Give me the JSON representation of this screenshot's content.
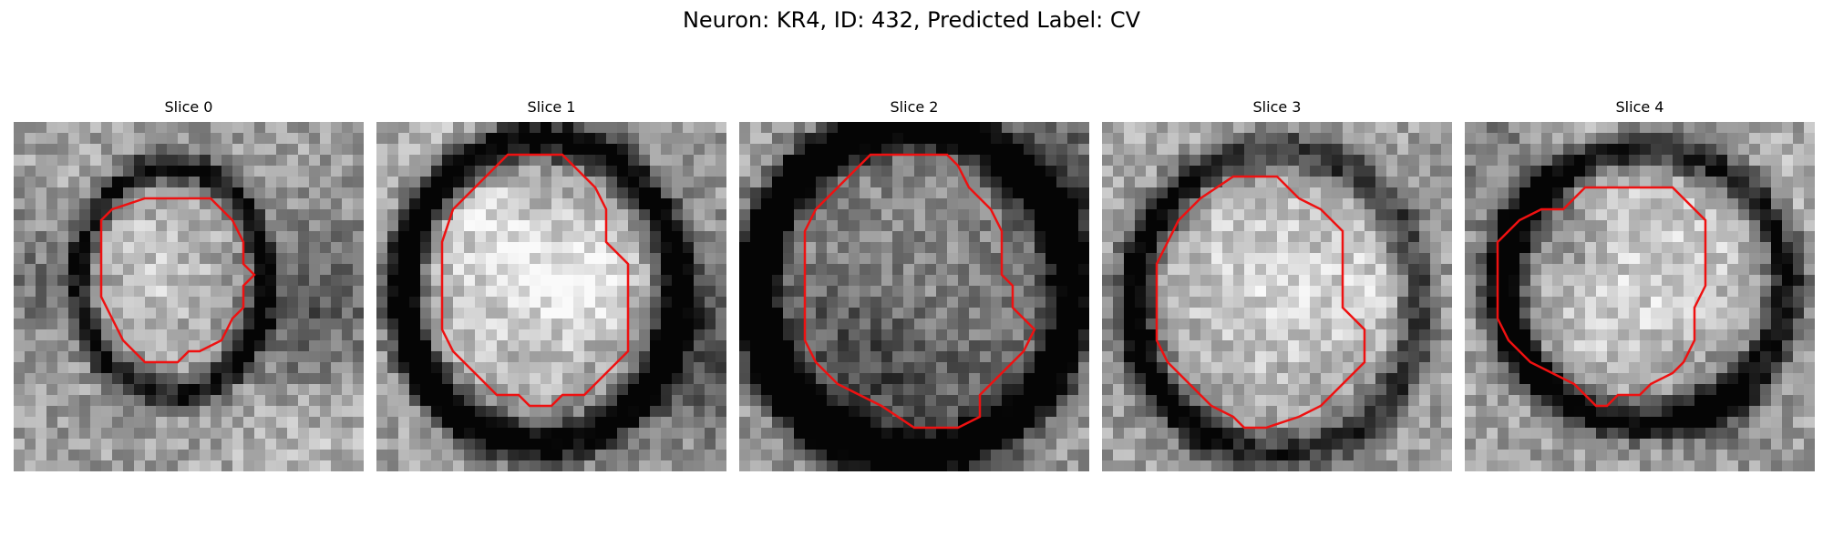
{
  "figure": {
    "title": "Neuron: KR4, ID: 432, Predicted Label: CV"
  },
  "slices": [
    {
      "title": "Slice 0"
    },
    {
      "title": "Slice 1"
    },
    {
      "title": "Slice 2"
    },
    {
      "title": "Slice 3"
    },
    {
      "title": "Slice 4"
    }
  ],
  "colors": {
    "contour": "#ee1111"
  }
}
